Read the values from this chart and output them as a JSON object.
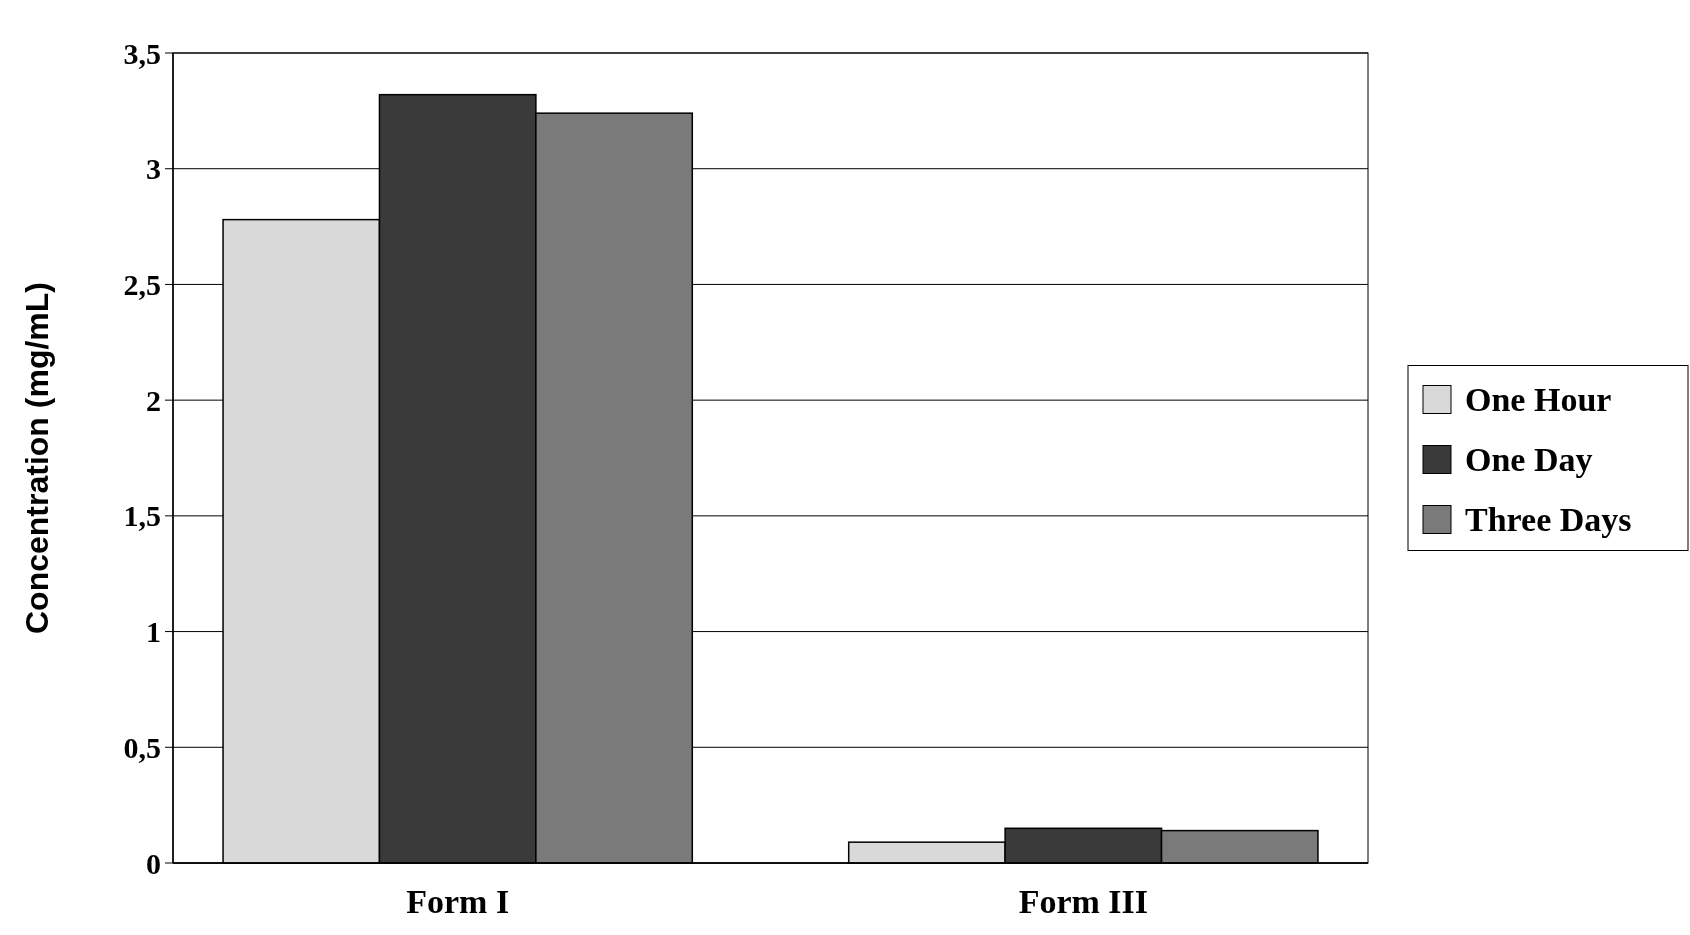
{
  "chart_data": {
    "type": "bar",
    "ylabel": "Concentration (mg/mL)",
    "categories": [
      "Form I",
      "Form III"
    ],
    "series": [
      {
        "name": "One Hour",
        "color": "#d9d9d9",
        "values": [
          2.78,
          0.09
        ]
      },
      {
        "name": "One Day",
        "color": "#3a3a3a",
        "values": [
          3.32,
          0.15
        ]
      },
      {
        "name": "Three Days",
        "color": "#7a7a7a",
        "values": [
          3.24,
          0.14
        ]
      }
    ],
    "ylim": [
      0,
      3.5
    ],
    "yticks": [
      0,
      {
        "value": 0.5,
        "label": "0,5"
      },
      1,
      {
        "value": 1.5,
        "label": "1,5"
      },
      2,
      {
        "value": 2.5,
        "label": "2,5"
      },
      3,
      {
        "value": 3.5,
        "label": "3,5"
      }
    ],
    "grid": "y",
    "legend": "right"
  }
}
